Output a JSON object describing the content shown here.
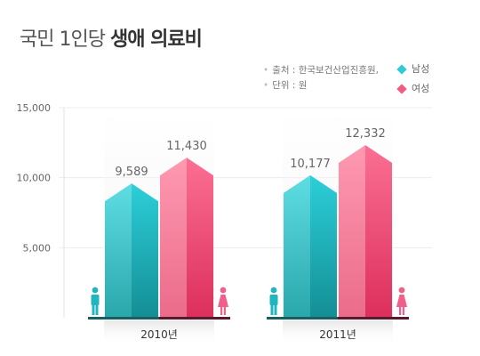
{
  "title": {
    "normal": "국민 1인당 ",
    "strong": "생애 의료비"
  },
  "source": {
    "line1": "출처 : 한국보건산업진흥원,",
    "line2": "단위 : 원"
  },
  "chart_data": {
    "type": "bar",
    "title": "국민 1인당 생애 의료비",
    "unit": "원",
    "categories": [
      "2010년",
      "2011년"
    ],
    "series": [
      {
        "name": "남성",
        "values": [
          9589,
          10177
        ],
        "color": "#2fcbd6"
      },
      {
        "name": "여성",
        "values": [
          11430,
          12332
        ],
        "color": "#f45b82"
      }
    ],
    "data_labels": [
      [
        "9,589",
        "11,430"
      ],
      [
        "10,177",
        "12,332"
      ]
    ],
    "yticks": [
      5000,
      10000,
      15000
    ],
    "ytick_labels": [
      "5,000",
      "10,000",
      "15,000"
    ],
    "ylim": [
      0,
      15000
    ],
    "legend": "top-right",
    "grid": true,
    "icons": {
      "male": "male-person-icon",
      "female": "female-person-icon"
    }
  }
}
